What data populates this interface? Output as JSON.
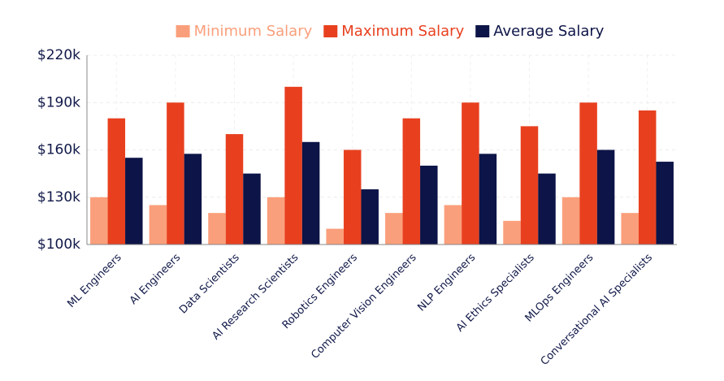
{
  "chart_data": {
    "type": "bar",
    "categories": [
      "ML Engineers",
      "AI Engineers",
      "Data Scientists",
      "AI Research Scientists",
      "Robotics Engineers",
      "Computer Vision Engineers",
      "NLP Engineers",
      "AI Ethics Specialists",
      "MLOps Engineers",
      "Conversational AI Specialists"
    ],
    "series": [
      {
        "name": "Minimum Salary",
        "color": "#fa9f7b",
        "values": [
          130000,
          125000,
          120000,
          130000,
          110000,
          120000,
          125000,
          115000,
          130000,
          120000
        ]
      },
      {
        "name": "Maximum Salary",
        "color": "#e8401f",
        "values": [
          180000,
          190000,
          170000,
          200000,
          160000,
          180000,
          190000,
          175000,
          190000,
          185000
        ]
      },
      {
        "name": "Average Salary",
        "color": "#0d1447",
        "values": [
          155000,
          157500,
          145000,
          165000,
          135000,
          150000,
          157500,
          145000,
          160000,
          152500
        ]
      }
    ],
    "ylim": [
      100000,
      220000
    ],
    "yticks": [
      {
        "value": 100000,
        "label": "$100k"
      },
      {
        "value": 130000,
        "label": "$130k"
      },
      {
        "value": 160000,
        "label": "$160k"
      },
      {
        "value": 190000,
        "label": "$190k"
      },
      {
        "value": 220000,
        "label": "$220k"
      }
    ],
    "grid": true,
    "legend": "top"
  }
}
